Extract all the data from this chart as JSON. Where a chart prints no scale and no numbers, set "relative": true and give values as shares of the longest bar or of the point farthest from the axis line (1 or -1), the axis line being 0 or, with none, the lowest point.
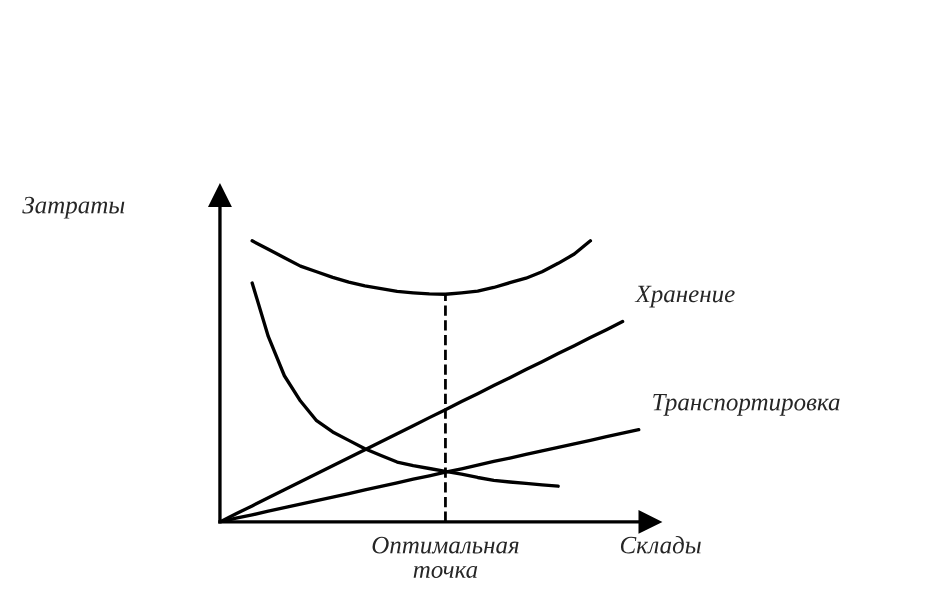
{
  "chart_data": {
    "type": "line",
    "relative": true,
    "xlabel": "Склады",
    "ylabel": "Затраты",
    "legend": false,
    "marker": "none",
    "line_style": "solid",
    "categories": [
      null,
      null,
      null,
      null,
      null,
      null,
      null,
      null,
      null,
      null,
      null,
      null,
      null,
      null,
      null,
      null,
      null,
      null,
      null,
      null,
      null,
      null,
      null,
      null,
      null,
      null,
      null
    ],
    "series": [
      {
        "name": null,
        "color": "#000000",
        "values": [
          null,
          null,
          1.0,
          0.97,
          0.94,
          0.91,
          0.89,
          0.87,
          0.853,
          0.84,
          0.83,
          0.82,
          0.815,
          0.811,
          0.81,
          0.815,
          0.821,
          0.834,
          0.851,
          0.867,
          0.89,
          0.92,
          0.953,
          1.0,
          null,
          null,
          null
        ]
      },
      {
        "name": "Хранение",
        "color": "#000000",
        "values": [
          0,
          0.029,
          0.057,
          0.086,
          0.114,
          0.143,
          0.171,
          0.2,
          0.228,
          0.257,
          0.285,
          0.314,
          0.342,
          0.371,
          0.399,
          0.428,
          0.456,
          0.485,
          0.513,
          0.542,
          0.57,
          0.599,
          0.627,
          0.656,
          0.684,
          0.713,
          null
        ]
      },
      {
        "name": "Транспортировка",
        "color": "#000000",
        "values": [
          0,
          0.013,
          0.025,
          0.038,
          0.051,
          0.063,
          0.076,
          0.088,
          0.101,
          0.114,
          0.126,
          0.139,
          0.152,
          0.164,
          0.177,
          0.189,
          0.202,
          0.215,
          0.227,
          0.24,
          0.253,
          0.265,
          0.278,
          0.29,
          0.303,
          0.316,
          0.328
        ]
      },
      {
        "name": null,
        "color": "#000000",
        "values": [
          null,
          null,
          0.85,
          0.66,
          0.52,
          0.43,
          0.36,
          0.32,
          0.29,
          0.26,
          0.236,
          0.213,
          0.2,
          0.19,
          0.18,
          0.17,
          0.158,
          0.148,
          0.142,
          0.137,
          0.132,
          0.127,
          null,
          null,
          null,
          null,
          null
        ]
      }
    ],
    "annotations": [
      "Оптимальная\nточка"
    ]
  }
}
